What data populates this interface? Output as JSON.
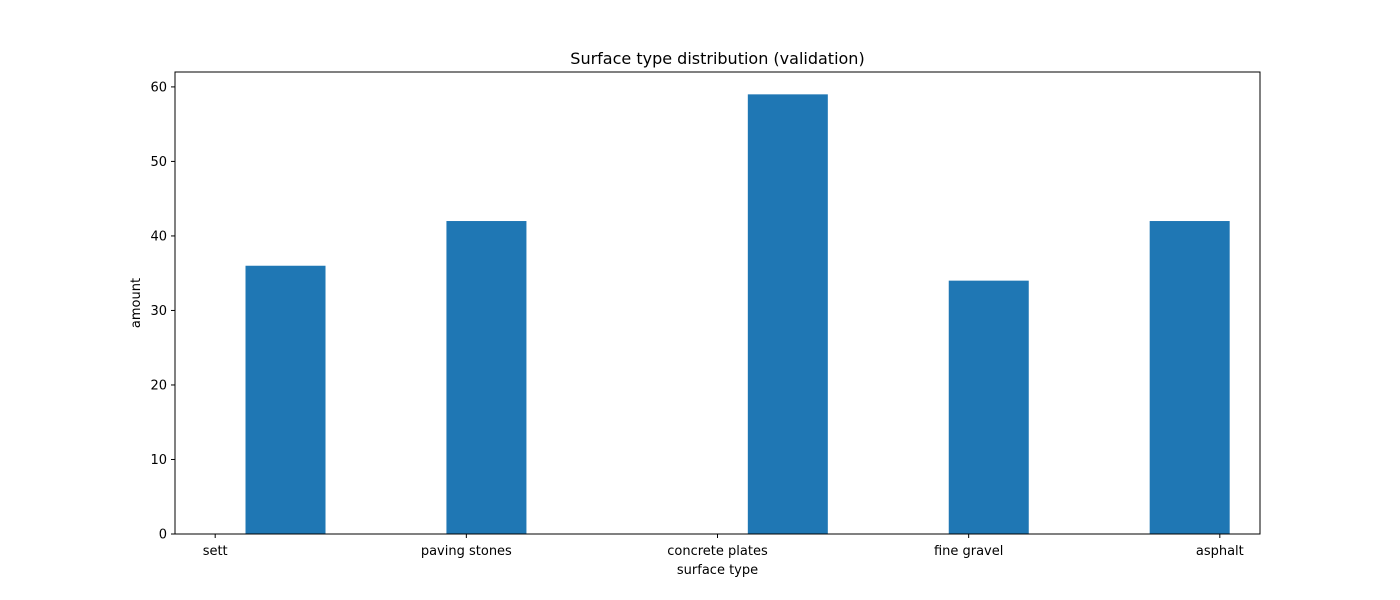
{
  "chart_data": {
    "type": "bar",
    "title": "Surface type distribution (validation)",
    "xlabel": "surface type",
    "ylabel": "amount",
    "categories": [
      "sett",
      "paving stones",
      "concrete plates",
      "fine gravel",
      "asphalt"
    ],
    "bar_x": [
      0.35,
      1.35,
      2.85,
      3.85,
      4.85
    ],
    "label_x": [
      0.0,
      1.25,
      2.5,
      3.75,
      5.0
    ],
    "values": [
      36,
      42,
      59,
      34,
      42
    ],
    "xlim": [
      -0.2,
      5.2
    ],
    "ylim": [
      0,
      62
    ],
    "yticks": [
      0,
      10,
      20,
      30,
      40,
      50,
      60
    ],
    "bar_color": "#1f77b4",
    "grid": false,
    "legend": "none"
  }
}
